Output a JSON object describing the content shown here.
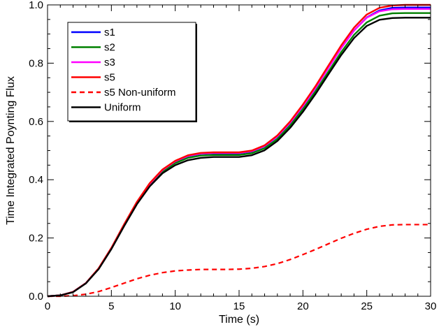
{
  "chart_data": {
    "type": "line",
    "title": "",
    "xlabel": "Time (s)",
    "ylabel": "Time Integrated Poynting Flux",
    "xlim": [
      0,
      30
    ],
    "ylim": [
      0.0,
      1.0
    ],
    "xticks": [
      0,
      5,
      10,
      15,
      20,
      25,
      30
    ],
    "xtick_labels": [
      "0",
      "5",
      "10",
      "15",
      "20",
      "25",
      "30"
    ],
    "yticks": [
      0.0,
      0.2,
      0.4,
      0.6,
      0.8,
      1.0
    ],
    "ytick_labels": [
      "0.0",
      "0.2",
      "0.4",
      "0.6",
      "0.8",
      "1.0"
    ],
    "grid": false,
    "legend_position": "top-left",
    "x": [
      0,
      1,
      2,
      3,
      4,
      5,
      6,
      7,
      8,
      9,
      10,
      11,
      12,
      13,
      14,
      15,
      16,
      17,
      18,
      19,
      20,
      21,
      22,
      23,
      24,
      25,
      26,
      27,
      28,
      29,
      30
    ],
    "series": [
      {
        "name": "s1",
        "color": "#0000ff",
        "dash": "solid",
        "values": [
          0.0,
          0.003,
          0.015,
          0.045,
          0.095,
          0.165,
          0.245,
          0.322,
          0.385,
          0.432,
          0.462,
          0.481,
          0.489,
          0.491,
          0.491,
          0.491,
          0.497,
          0.515,
          0.548,
          0.595,
          0.652,
          0.715,
          0.784,
          0.852,
          0.912,
          0.957,
          0.981,
          0.99,
          0.991,
          0.991,
          0.991
        ]
      },
      {
        "name": "s2",
        "color": "#008000",
        "dash": "solid",
        "values": [
          0.0,
          0.003,
          0.015,
          0.045,
          0.095,
          0.164,
          0.244,
          0.32,
          0.382,
          0.428,
          0.457,
          0.475,
          0.483,
          0.485,
          0.485,
          0.485,
          0.491,
          0.508,
          0.54,
          0.586,
          0.642,
          0.704,
          0.771,
          0.838,
          0.897,
          0.94,
          0.963,
          0.971,
          0.972,
          0.972,
          0.972
        ]
      },
      {
        "name": "s3",
        "color": "#ff00ff",
        "dash": "solid",
        "values": [
          0.0,
          0.003,
          0.015,
          0.045,
          0.095,
          0.165,
          0.245,
          0.322,
          0.386,
          0.433,
          0.463,
          0.482,
          0.49,
          0.492,
          0.492,
          0.492,
          0.498,
          0.516,
          0.549,
          0.596,
          0.653,
          0.716,
          0.784,
          0.852,
          0.912,
          0.956,
          0.978,
          0.985,
          0.986,
          0.986,
          0.986
        ]
      },
      {
        "name": "s5",
        "color": "#ff0000",
        "dash": "solid",
        "values": [
          0.0,
          0.003,
          0.015,
          0.045,
          0.096,
          0.166,
          0.247,
          0.324,
          0.388,
          0.435,
          0.465,
          0.484,
          0.492,
          0.494,
          0.494,
          0.494,
          0.5,
          0.518,
          0.552,
          0.6,
          0.658,
          0.722,
          0.792,
          0.861,
          0.922,
          0.967,
          0.99,
          0.998,
          1.0,
          1.0,
          1.0
        ]
      },
      {
        "name": "s5 Non-uniform",
        "color": "#ff0000",
        "dash": "dashed",
        "values": [
          0.0,
          0.0,
          0.002,
          0.007,
          0.016,
          0.03,
          0.045,
          0.06,
          0.072,
          0.081,
          0.087,
          0.09,
          0.092,
          0.092,
          0.092,
          0.093,
          0.096,
          0.102,
          0.112,
          0.126,
          0.143,
          0.161,
          0.18,
          0.199,
          0.216,
          0.23,
          0.24,
          0.245,
          0.246,
          0.246,
          0.246
        ]
      },
      {
        "name": "Uniform",
        "color": "#000000",
        "dash": "solid",
        "values": [
          0.0,
          0.003,
          0.014,
          0.044,
          0.093,
          0.162,
          0.241,
          0.316,
          0.377,
          0.422,
          0.45,
          0.467,
          0.475,
          0.478,
          0.478,
          0.478,
          0.484,
          0.501,
          0.533,
          0.578,
          0.633,
          0.695,
          0.762,
          0.828,
          0.886,
          0.928,
          0.949,
          0.955,
          0.956,
          0.956,
          0.956
        ]
      }
    ]
  }
}
